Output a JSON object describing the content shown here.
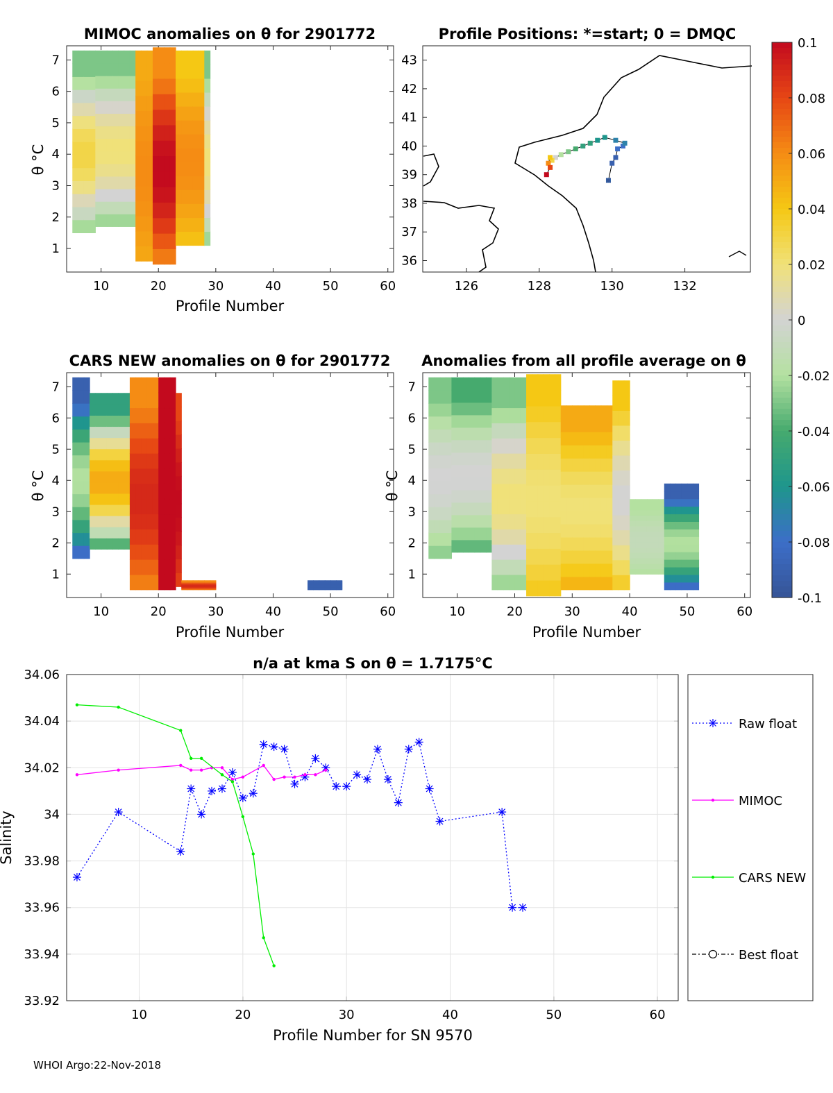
{
  "footer": "WHOI Argo:22-Nov-2018",
  "panel_titles": {
    "mimoc": "MIMOC anomalies on θ  for 2901772",
    "map": "Profile Positions: *=start; 0 = DMQC",
    "cars": "CARS NEW anomalies on θ for 2901772",
    "avg": "Anomalies from all profile average on θ",
    "salinity": "n/a at kma S on θ = 1.7175°C"
  },
  "axis_labels": {
    "profile_number": "Profile Number",
    "theta": "θ °C",
    "salinity": "Salinity",
    "sal_x": "Profile Number for SN 9570"
  },
  "colorbar": {
    "ticks": [
      "0.1",
      "0.08",
      "0.06",
      "0.04",
      "0.02",
      "0",
      "-0.02",
      "-0.04",
      "-0.06",
      "-0.08",
      "-0.1"
    ]
  },
  "colors": {
    "raw_float": "#0000ff",
    "mimoc": "#ff00ff",
    "cars_new": "#00ee00",
    "best_float": "#000000"
  },
  "chart_data": [
    {
      "type": "heatmap",
      "id": "mimoc",
      "title": "MIMOC anomalies on θ  for 2901772",
      "xlabel": "Profile Number",
      "ylabel": "θ °C",
      "xlim": [
        4,
        61
      ],
      "ylim": [
        0.25,
        7.45
      ],
      "xticks": [
        10,
        20,
        30,
        40,
        50,
        60
      ],
      "yticks": [
        1,
        2,
        3,
        4,
        5,
        6,
        7
      ],
      "columns": [
        {
          "x": [
            5,
            9
          ],
          "y": [
            1.5,
            7.3
          ],
          "base": -0.03,
          "mid": 0.03
        },
        {
          "x": [
            9,
            16
          ],
          "y": [
            1.7,
            7.3
          ],
          "base": -0.03,
          "mid": 0.02
        },
        {
          "x": [
            16,
            19
          ],
          "y": [
            0.6,
            7.3
          ],
          "base": 0.05,
          "mid": 0.06
        },
        {
          "x": [
            19,
            23
          ],
          "y": [
            0.5,
            7.4
          ],
          "base": 0.06,
          "mid": 0.1
        },
        {
          "x": [
            23,
            28
          ],
          "y": [
            1.1,
            7.3
          ],
          "base": 0.04,
          "mid": 0.06
        },
        {
          "x": [
            28,
            29
          ],
          "y": [
            1.1,
            7.3
          ],
          "base": -0.03,
          "mid": 0.02
        }
      ]
    },
    {
      "type": "scatter",
      "id": "positions",
      "title": "Profile Positions: *=start; 0 = DMQC",
      "xlim": [
        124.8,
        133.8
      ],
      "ylim": [
        35.6,
        43.5
      ],
      "xticks": [
        126,
        128,
        130,
        132
      ],
      "yticks": [
        36,
        37,
        38,
        39,
        40,
        41,
        42,
        43
      ],
      "lon": [
        129.9,
        130.0,
        130.1,
        130.15,
        130.3,
        130.35,
        130.1,
        129.8,
        129.6,
        129.4,
        129.2,
        129.0,
        128.8,
        128.6,
        128.45,
        128.35,
        128.3,
        128.25,
        128.3,
        128.2
      ],
      "lat": [
        38.8,
        39.4,
        39.6,
        39.9,
        40.0,
        40.1,
        40.2,
        40.3,
        40.2,
        40.1,
        40.0,
        39.9,
        39.8,
        39.7,
        39.6,
        39.5,
        39.6,
        39.4,
        39.25,
        39.0
      ],
      "anomaly": [
        -0.1,
        -0.09,
        -0.09,
        -0.08,
        -0.08,
        -0.07,
        -0.07,
        -0.06,
        -0.06,
        -0.05,
        -0.05,
        -0.04,
        -0.03,
        -0.02,
        0.0,
        0.03,
        0.04,
        0.06,
        0.08,
        0.1
      ]
    },
    {
      "type": "heatmap",
      "id": "cars",
      "title": "CARS NEW anomalies on θ for 2901772",
      "xlabel": "Profile Number",
      "ylabel": "θ °C",
      "xlim": [
        4,
        61
      ],
      "ylim": [
        0.25,
        7.45
      ],
      "xticks": [
        10,
        20,
        30,
        40,
        50,
        60
      ],
      "yticks": [
        1,
        2,
        3,
        4,
        5,
        6,
        7
      ],
      "columns": [
        {
          "x": [
            5,
            8
          ],
          "y": [
            1.5,
            7.3
          ],
          "base": -0.09,
          "mid": -0.02
        },
        {
          "x": [
            8,
            15
          ],
          "y": [
            1.8,
            6.8
          ],
          "base": -0.05,
          "mid": 0.05
        },
        {
          "x": [
            15,
            20
          ],
          "y": [
            0.5,
            7.3
          ],
          "base": 0.06,
          "mid": 0.09
        },
        {
          "x": [
            20,
            23
          ],
          "y": [
            0.5,
            7.3
          ],
          "base": 0.1,
          "mid": 0.1
        },
        {
          "x": [
            23,
            24
          ],
          "y": [
            0.6,
            6.8
          ],
          "base": 0.08,
          "mid": 0.1
        },
        {
          "x": [
            24,
            30
          ],
          "y": [
            0.5,
            0.8
          ],
          "base": 0.06,
          "mid": 0.09
        },
        {
          "x": [
            46,
            52
          ],
          "y": [
            0.5,
            0.8
          ],
          "base": -0.09,
          "mid": -0.09
        }
      ]
    },
    {
      "type": "heatmap",
      "id": "avg",
      "title": "Anomalies from all profile average on θ",
      "xlabel": "Profile Number",
      "ylabel": "θ °C",
      "xlim": [
        4,
        61
      ],
      "ylim": [
        0.25,
        7.45
      ],
      "xticks": [
        10,
        20,
        30,
        40,
        50,
        60
      ],
      "yticks": [
        1,
        2,
        3,
        4,
        5,
        6,
        7
      ],
      "columns": [
        {
          "x": [
            5,
            9
          ],
          "y": [
            1.5,
            7.3
          ],
          "base": -0.03,
          "mid": 0.0
        },
        {
          "x": [
            9,
            16
          ],
          "y": [
            1.7,
            7.3
          ],
          "base": -0.04,
          "mid": 0.0
        },
        {
          "x": [
            16,
            22
          ],
          "y": [
            0.5,
            7.3
          ],
          "base": -0.03,
          "mid": 0.02
        },
        {
          "x": [
            22,
            28
          ],
          "y": [
            0.3,
            7.4
          ],
          "base": 0.04,
          "mid": 0.02
        },
        {
          "x": [
            28,
            37
          ],
          "y": [
            0.5,
            6.4
          ],
          "base": 0.05,
          "mid": 0.02
        },
        {
          "x": [
            37,
            40
          ],
          "y": [
            0.5,
            7.2
          ],
          "base": 0.04,
          "mid": 0.0
        },
        {
          "x": [
            40,
            46
          ],
          "y": [
            1.0,
            3.4
          ],
          "base": -0.02,
          "mid": -0.01
        },
        {
          "x": [
            46,
            52
          ],
          "y": [
            0.5,
            3.9
          ],
          "base": -0.09,
          "mid": -0.02
        }
      ]
    },
    {
      "type": "line",
      "id": "salinity",
      "title": "n/a at kma S on θ = 1.7175°C",
      "xlabel": "Profile Number for SN 9570",
      "ylabel": "Salinity",
      "xlim": [
        3,
        62
      ],
      "ylim": [
        33.92,
        34.06
      ],
      "xticks": [
        10,
        20,
        30,
        40,
        50,
        60
      ],
      "yticks": [
        33.92,
        33.94,
        33.96,
        33.98,
        34,
        34.02,
        34.04,
        34.06
      ],
      "ytick_labels": [
        "33.92",
        "33.94",
        "33.96",
        "33.98",
        "34",
        "34.02",
        "34.04",
        "34.06"
      ],
      "series": [
        {
          "name": "Raw float",
          "color": "#0000ff",
          "style": "dotted",
          "marker": "asterisk",
          "x": [
            4,
            8,
            14,
            15,
            16,
            17,
            18,
            19,
            20,
            21,
            22,
            23,
            24,
            25,
            26,
            27,
            28,
            29,
            30,
            31,
            32,
            33,
            34,
            35,
            36,
            37,
            38,
            39,
            45,
            46,
            47
          ],
          "y": [
            33.973,
            34.001,
            33.984,
            34.011,
            34.0,
            34.01,
            34.011,
            34.018,
            34.007,
            34.009,
            34.03,
            34.029,
            34.028,
            34.013,
            34.016,
            34.024,
            34.02,
            34.012,
            34.012,
            34.017,
            34.015,
            34.028,
            34.015,
            34.005,
            34.028,
            34.031,
            34.011,
            33.997,
            34.001,
            33.96,
            33.96
          ]
        },
        {
          "name": "MIMOC",
          "color": "#ff00ff",
          "style": "solid",
          "marker": "dot",
          "x": [
            4,
            8,
            14,
            15,
            16,
            17,
            18,
            19,
            20,
            22,
            23,
            24,
            25,
            26,
            27,
            28
          ],
          "y": [
            34.017,
            34.019,
            34.021,
            34.019,
            34.019,
            34.02,
            34.02,
            34.015,
            34.016,
            34.021,
            34.015,
            34.016,
            34.016,
            34.017,
            34.017,
            34.019
          ]
        },
        {
          "name": "CARS NEW",
          "color": "#00ee00",
          "style": "solid",
          "marker": "dot",
          "x": [
            4,
            8,
            14,
            15,
            16,
            18,
            19,
            20,
            21,
            22,
            23
          ],
          "y": [
            34.047,
            34.046,
            34.036,
            34.024,
            34.024,
            34.017,
            34.014,
            33.999,
            33.983,
            33.947,
            33.935
          ]
        },
        {
          "name": "Best float",
          "color": "#000000",
          "style": "dashdot",
          "marker": "circle",
          "x": [],
          "y": []
        }
      ]
    }
  ]
}
